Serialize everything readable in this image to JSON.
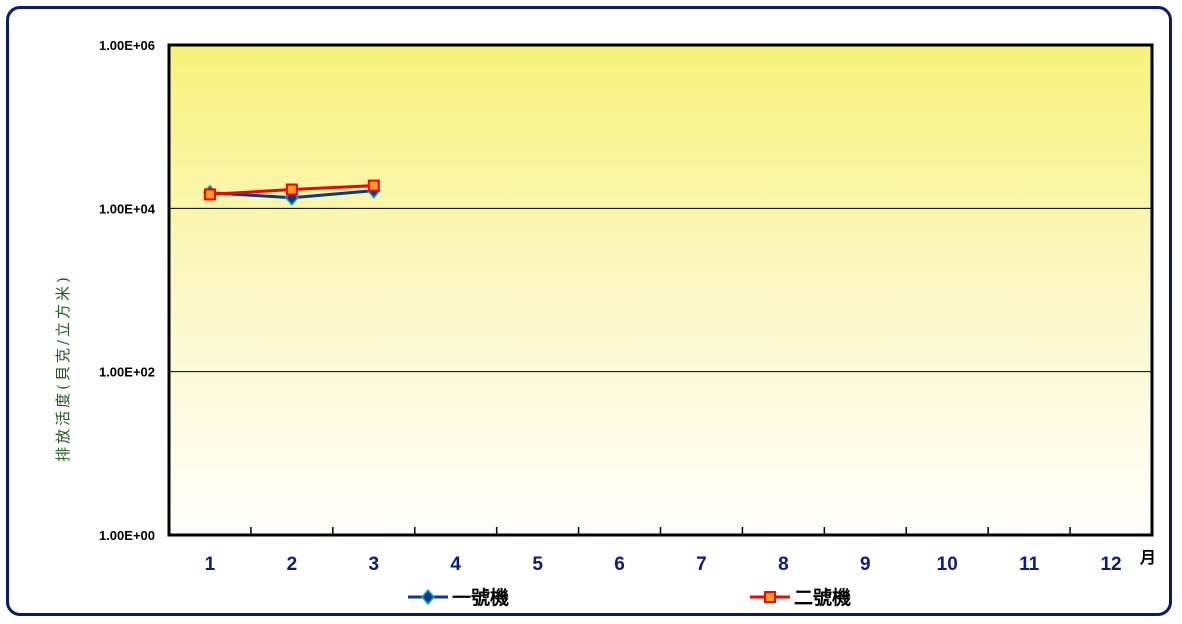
{
  "chart_data": {
    "type": "line",
    "title": "",
    "xlabel": "月",
    "ylabel": "排放活度(貝克/立方米)",
    "yscale": "log",
    "ylim": [
      1,
      1000000
    ],
    "yticks": [
      "1.00E+00",
      "1.00E+02",
      "1.00E+04",
      "1.00E+06"
    ],
    "categories": [
      "1",
      "2",
      "3",
      "4",
      "5",
      "6",
      "7",
      "8",
      "9",
      "10",
      "11",
      "12"
    ],
    "grid": true,
    "legend_position": "bottom",
    "series": [
      {
        "name": "一號機",
        "color": "#0b3a8c",
        "marker": "diamond",
        "values": [
          15500,
          13500,
          16500,
          null,
          null,
          null,
          null,
          null,
          null,
          null,
          null,
          null
        ]
      },
      {
        "name": "二號機",
        "color": "#ff0000",
        "marker": "square",
        "values": [
          14800,
          17000,
          19000,
          null,
          null,
          null,
          null,
          null,
          null,
          null,
          null,
          null
        ]
      }
    ]
  }
}
